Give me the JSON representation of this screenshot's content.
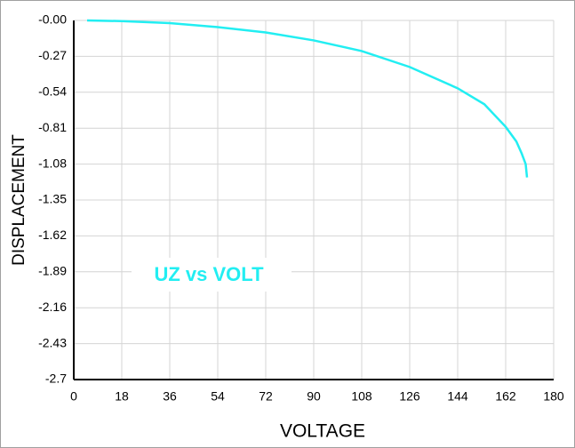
{
  "chart_data": {
    "type": "line",
    "xlabel": "VOLTAGE",
    "ylabel": "DISPLACEMENT",
    "annotation": "UZ vs VOLT",
    "x": [
      5,
      18,
      36,
      54,
      72,
      90,
      108,
      126,
      144,
      154,
      162,
      166,
      168,
      169.5,
      170
    ],
    "series": [
      {
        "color": "#22eef2",
        "values": [
          0,
          -0.005,
          -0.02,
          -0.05,
          -0.09,
          -0.15,
          -0.23,
          -0.35,
          -0.51,
          -0.63,
          -0.8,
          -0.91,
          -1.0,
          -1.08,
          -1.18
        ]
      }
    ],
    "xlim": [
      0,
      180
    ],
    "xticks": [
      0,
      18,
      36,
      54,
      72,
      90,
      108,
      126,
      144,
      162,
      180
    ],
    "ylim": [
      -2.7,
      0
    ],
    "yticks": [
      {
        "value": 0,
        "label": "-0.00"
      },
      -0.27,
      -0.54,
      -0.81,
      -1.08,
      -1.35,
      -1.62,
      -1.89,
      -2.16,
      -2.43,
      -2.7
    ],
    "grid": true
  }
}
